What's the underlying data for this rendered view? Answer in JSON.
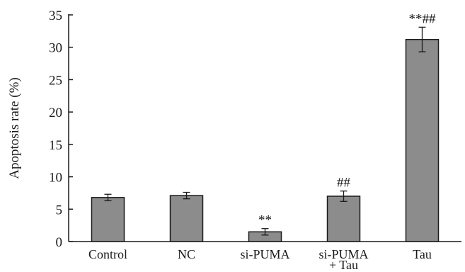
{
  "chart_data": {
    "type": "bar",
    "ylabel": "Apoptosis rate (%)",
    "ylim": [
      0,
      35
    ],
    "yticks": [
      0,
      5,
      10,
      15,
      20,
      25,
      30,
      35
    ],
    "categories": [
      [
        "Control"
      ],
      [
        "NC"
      ],
      [
        "si-PUMA"
      ],
      [
        "si-PUMA",
        "+ Tau"
      ],
      [
        "Tau"
      ]
    ],
    "values": [
      6.8,
      7.1,
      1.5,
      7.0,
      31.2
    ],
    "errors": [
      0.5,
      0.5,
      0.5,
      0.8,
      1.9
    ],
    "annotations": [
      "",
      "",
      "**",
      "##",
      "**##"
    ],
    "colors": {
      "bar_fill": "#8c8c8c",
      "bar_stroke": "#1a1a1a",
      "axis": "#1a1a1a"
    },
    "grid": false,
    "legend": "none"
  }
}
